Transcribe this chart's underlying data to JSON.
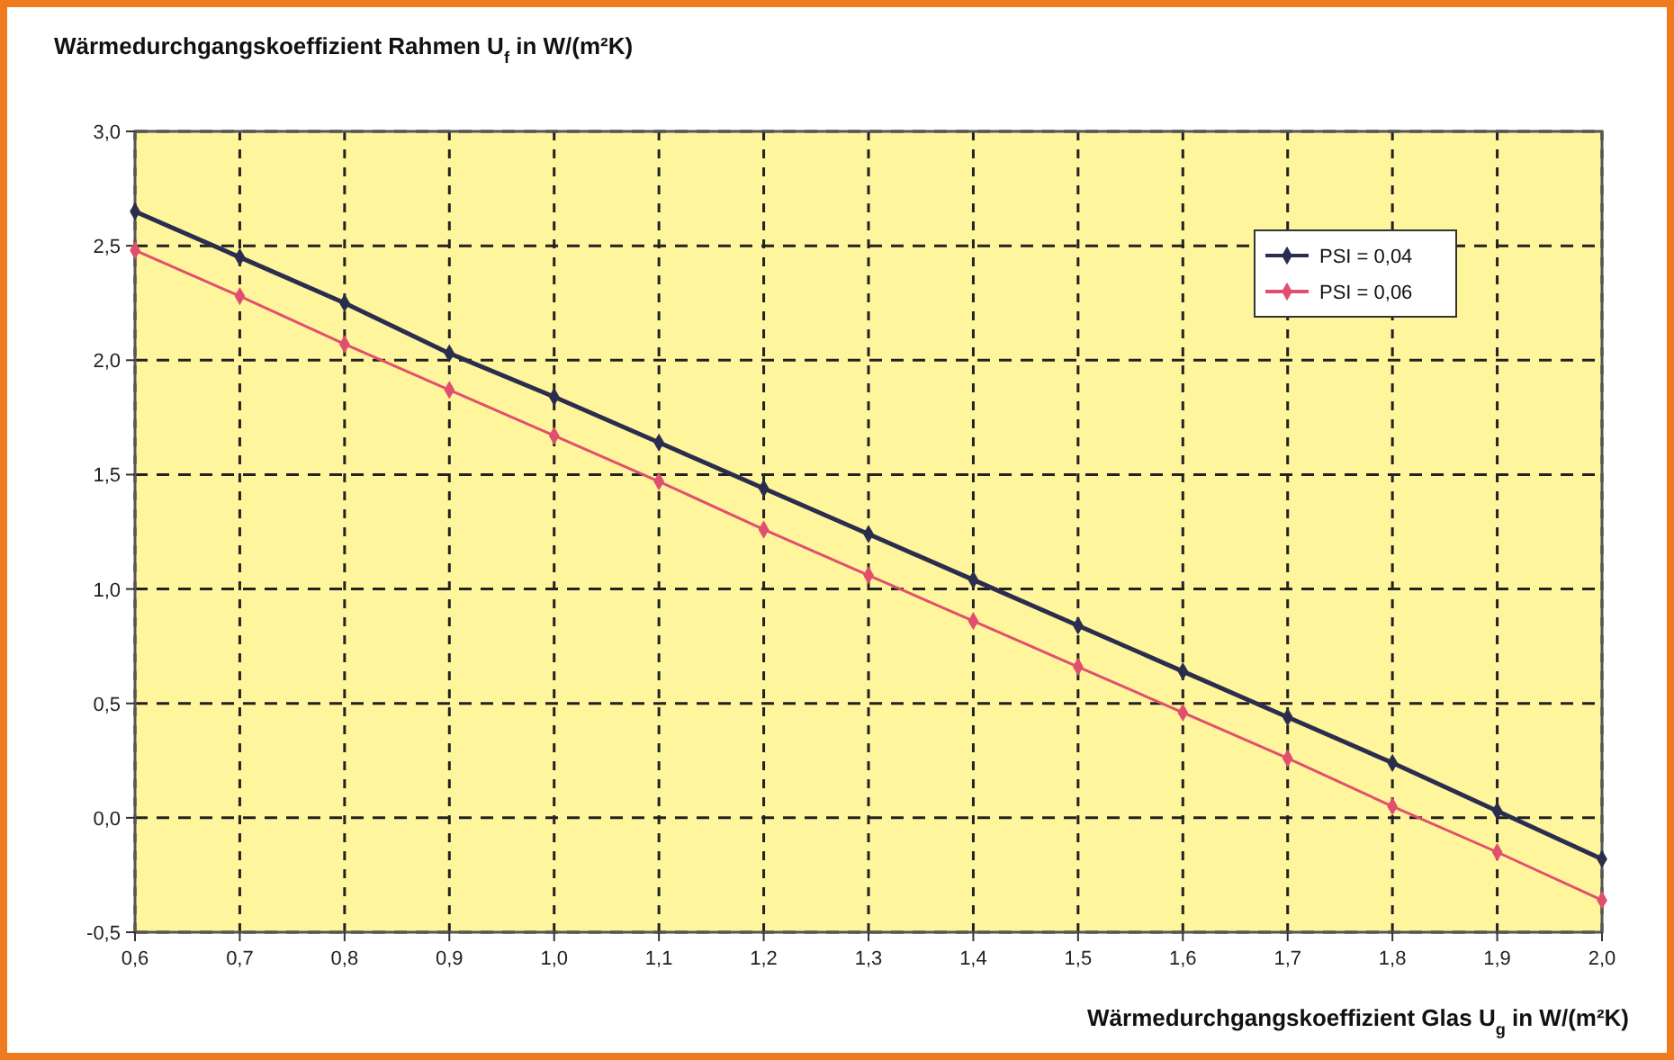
{
  "chart_data": {
    "type": "line",
    "title": "Wärmedurchgangskoeffizient Rahmen U$_{f}$ in W/(m²K)",
    "xlabel": "Wärmedurchgangskoeffizient Glas U$_{g}$ in W/(m²K)",
    "x": [
      0.6,
      0.7,
      0.8,
      0.9,
      1.0,
      1.1,
      1.2,
      1.3,
      1.4,
      1.5,
      1.6,
      1.7,
      1.8,
      1.9,
      2.0
    ],
    "series": [
      {
        "name": "PSI = 0,04",
        "color": "#2b2d4e",
        "values": [
          2.65,
          2.45,
          2.25,
          2.03,
          1.84,
          1.64,
          1.44,
          1.24,
          1.04,
          0.84,
          0.64,
          0.44,
          0.24,
          0.03,
          -0.18
        ]
      },
      {
        "name": "PSI = 0,06",
        "color": "#e0506e",
        "values": [
          2.48,
          2.28,
          2.07,
          1.87,
          1.67,
          1.47,
          1.26,
          1.06,
          0.86,
          0.66,
          0.46,
          0.26,
          0.05,
          -0.15,
          -0.36
        ]
      }
    ],
    "xlim": [
      0.6,
      2.0
    ],
    "xticks": [
      {
        "value": 0.6,
        "label": "0,6"
      },
      {
        "value": 0.7,
        "label": "0,7"
      },
      {
        "value": 0.8,
        "label": "0,8"
      },
      {
        "value": 0.9,
        "label": "0,9"
      },
      {
        "value": 1.0,
        "label": "1,0"
      },
      {
        "value": 1.1,
        "label": "1,1"
      },
      {
        "value": 1.2,
        "label": "1,2"
      },
      {
        "value": 1.3,
        "label": "1,3"
      },
      {
        "value": 1.4,
        "label": "1,4"
      },
      {
        "value": 1.5,
        "label": "1,5"
      },
      {
        "value": 1.6,
        "label": "1,6"
      },
      {
        "value": 1.7,
        "label": "1,7"
      },
      {
        "value": 1.8,
        "label": "1,8"
      },
      {
        "value": 1.9,
        "label": "1,9"
      },
      {
        "value": 2.0,
        "label": "2,0"
      }
    ],
    "ylim": [
      -0.5,
      3.0
    ],
    "yticks": [
      {
        "value": -0.5,
        "label": "-0,5"
      },
      {
        "value": 0,
        "label": "0,0"
      },
      {
        "value": 0.5,
        "label": "0,5"
      },
      {
        "value": 1.0,
        "label": "1,0"
      },
      {
        "value": 1.5,
        "label": "1,5"
      },
      {
        "value": 2.0,
        "label": "2,0"
      },
      {
        "value": 2.5,
        "label": "2,5"
      },
      {
        "value": 3.0,
        "label": "3,0"
      }
    ],
    "grid": true,
    "legend": "top right",
    "marker": "diamond",
    "line_style": "solid"
  }
}
